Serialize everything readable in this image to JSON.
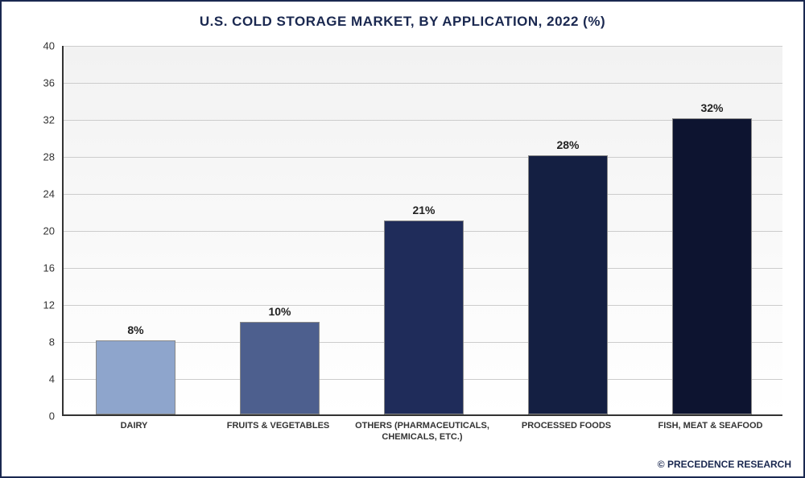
{
  "chart": {
    "type": "bar",
    "title": "U.S. COLD STORAGE MARKET, BY APPLICATION, 2022 (%)",
    "title_color": "#1a2850",
    "title_fontsize": 17,
    "categories": [
      "DAIRY",
      "FRUITS & VEGETABLES",
      "OTHERS (PHARMACEUTICALS, CHEMICALS, ETC.)",
      "PROCESSED FOODS",
      "FISH, MEAT & SEAFOOD"
    ],
    "values": [
      8,
      10,
      21,
      28,
      32
    ],
    "value_labels": [
      "8%",
      "10%",
      "21%",
      "28%",
      "32%"
    ],
    "bar_colors": [
      "#8ea5cc",
      "#4d5f8e",
      "#1f2c5a",
      "#141f42",
      "#0d1430"
    ],
    "ylim": [
      0,
      40
    ],
    "yticks": [
      0,
      4,
      8,
      12,
      16,
      20,
      24,
      28,
      32,
      36,
      40
    ],
    "bar_width_ratio": 0.55,
    "plot_bg_top": "#f2f2f2",
    "plot_bg_bottom": "#ffffff",
    "grid_color": "#cccccc",
    "axis_color": "#333333",
    "border_color": "#1a2850",
    "xlabel_fontsize": 11,
    "value_label_fontsize": 14
  },
  "copyright": "© PRECEDENCE RESEARCH"
}
